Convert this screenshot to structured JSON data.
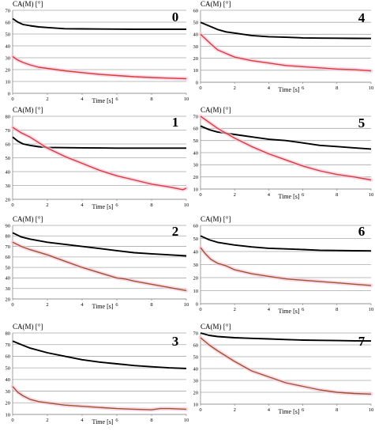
{
  "chart_data": [
    {
      "panel_label": "0",
      "type": "line",
      "ylabel": "CA(M) [°]",
      "xlabel": "Time [s]",
      "ylim": [
        0,
        70
      ],
      "yticks": [
        0,
        10,
        20,
        30,
        40,
        50,
        60,
        70
      ],
      "xlim": [
        0,
        10
      ],
      "xticks": [
        0,
        2,
        4,
        6,
        8,
        10
      ],
      "grid": "horizontal",
      "series": [
        {
          "color": "#000000",
          "x": [
            0,
            0.3,
            0.6,
            1,
            1.5,
            2,
            3,
            4,
            5,
            6,
            7,
            8,
            9,
            10
          ],
          "y": [
            63,
            60,
            58,
            57,
            56,
            55.5,
            54.5,
            54.3,
            54.2,
            54.1,
            54.0,
            54.0,
            54.0,
            54.0
          ]
        },
        {
          "color": "#d93a3a",
          "x": [
            0,
            0.3,
            0.6,
            1,
            1.5,
            2,
            3,
            4,
            5,
            6,
            7,
            8,
            9,
            10
          ],
          "y": [
            31,
            28,
            26,
            24,
            22,
            21,
            19,
            17.5,
            16,
            15,
            14,
            13.3,
            12.8,
            12.3
          ]
        }
      ]
    },
    {
      "panel_label": "4",
      "type": "line",
      "ylabel": "CA(M) [°]",
      "xlabel": "Time [s]",
      "ylim": [
        0,
        60
      ],
      "yticks": [
        0,
        10,
        20,
        30,
        40,
        50,
        60
      ],
      "xlim": [
        0,
        10
      ],
      "xticks": [
        0,
        2,
        4,
        6,
        8,
        10
      ],
      "grid": "horizontal",
      "series": [
        {
          "color": "#000000",
          "x": [
            0,
            0.5,
            1,
            1.5,
            2,
            3,
            4,
            5,
            6,
            7,
            8,
            9,
            10
          ],
          "y": [
            50,
            47,
            44,
            42,
            41,
            39,
            38,
            37.5,
            37,
            36.8,
            36.7,
            36.6,
            36.5
          ]
        },
        {
          "color": "#d93a3a",
          "x": [
            0,
            0.3,
            0.6,
            1,
            1.5,
            2,
            3,
            4,
            5,
            6,
            7,
            8,
            9,
            10
          ],
          "y": [
            40,
            36,
            32,
            27,
            24,
            21,
            18,
            16,
            14,
            13,
            12,
            11,
            10.5,
            9.5
          ]
        }
      ]
    },
    {
      "panel_label": "1",
      "type": "line",
      "ylabel": "CA(M) [°]",
      "xlabel": "Time [s]",
      "ylim": [
        20,
        80
      ],
      "yticks": [
        20,
        30,
        40,
        50,
        60,
        70,
        80
      ],
      "xlim": [
        0,
        10
      ],
      "xticks": [
        0,
        2,
        4,
        6,
        8,
        10
      ],
      "grid": "horizontal",
      "series": [
        {
          "color": "#000000",
          "x": [
            0,
            0.3,
            0.6,
            1,
            1.5,
            2,
            3,
            4,
            5,
            6,
            7,
            8,
            9,
            10
          ],
          "y": [
            65,
            62,
            60,
            59,
            58,
            57.5,
            57.3,
            57.2,
            57.1,
            57.0,
            57.0,
            57.0,
            57.0,
            57.0
          ]
        },
        {
          "color": "#d93a3a",
          "x": [
            0,
            0.5,
            1,
            2,
            3,
            4,
            5,
            6,
            7,
            8,
            9,
            9.8,
            10
          ],
          "y": [
            72,
            68,
            65,
            57,
            51,
            46,
            41,
            37,
            34,
            31,
            29,
            27,
            28
          ]
        }
      ]
    },
    {
      "panel_label": "5",
      "type": "line",
      "ylabel": "CA(M) [°]",
      "xlabel": "Time [s]",
      "ylim": [
        10,
        70
      ],
      "yticks": [
        10,
        20,
        30,
        40,
        50,
        60,
        70
      ],
      "xlim": [
        0,
        10
      ],
      "xticks": [
        0,
        2,
        4,
        6,
        8,
        10
      ],
      "grid": "horizontal",
      "series": [
        {
          "color": "#000000",
          "x": [
            0,
            0.5,
            1,
            2,
            3,
            4,
            5,
            6,
            7,
            8,
            9,
            10
          ],
          "y": [
            62,
            59,
            57,
            55,
            53,
            51,
            50,
            48,
            46,
            45,
            44,
            43
          ]
        },
        {
          "color": "#d93a3a",
          "x": [
            0,
            0.5,
            1,
            2,
            3,
            4,
            5,
            6,
            7,
            8,
            9,
            10
          ],
          "y": [
            70,
            65,
            60,
            52,
            45,
            39,
            34,
            29,
            25,
            22,
            20,
            17.5
          ]
        }
      ]
    },
    {
      "panel_label": "2",
      "type": "line",
      "ylabel": "CA(M) [°]",
      "xlabel": "Time [s]",
      "ylim": [
        20,
        90
      ],
      "yticks": [
        20,
        30,
        40,
        50,
        60,
        70,
        80,
        90
      ],
      "xlim": [
        0,
        10
      ],
      "xticks": [
        0,
        2,
        4,
        6,
        8,
        10
      ],
      "grid": "horizontal",
      "series": [
        {
          "color": "#000000",
          "x": [
            0,
            0.5,
            1,
            2,
            3,
            4,
            5,
            6,
            7,
            8,
            9,
            10
          ],
          "y": [
            83,
            79,
            77,
            74,
            72,
            70,
            68,
            66,
            64,
            63,
            62,
            61
          ]
        },
        {
          "color": "#a0522d",
          "x": [
            0,
            0.5,
            1,
            2,
            3,
            4,
            5,
            6,
            6.5,
            7,
            8,
            9,
            10
          ],
          "y": [
            74,
            70,
            67,
            62,
            56,
            50,
            45,
            40,
            39,
            37,
            34,
            31,
            28
          ]
        }
      ]
    },
    {
      "panel_label": "6",
      "type": "line",
      "ylabel": "CA(M) [°]",
      "xlabel": "Time [s]",
      "ylim": [
        0,
        60
      ],
      "yticks": [
        0,
        10,
        20,
        30,
        40,
        50,
        60
      ],
      "xlim": [
        0,
        10
      ],
      "xticks": [
        0,
        2,
        4,
        6,
        8,
        10
      ],
      "grid": "horizontal",
      "series": [
        {
          "color": "#000000",
          "x": [
            0,
            0.5,
            1,
            2,
            3,
            4,
            5,
            6,
            7,
            8,
            9,
            10
          ],
          "y": [
            52,
            49,
            47,
            45,
            43.5,
            42.5,
            42,
            41.5,
            41,
            40.8,
            40.6,
            40.5
          ]
        },
        {
          "color": "#a0522d",
          "x": [
            0,
            0.3,
            0.6,
            1,
            1.5,
            2,
            3,
            4,
            5,
            6,
            7,
            8,
            9,
            10
          ],
          "y": [
            43,
            38,
            34,
            31,
            29,
            26,
            23,
            21,
            19,
            18,
            17,
            16,
            15,
            14
          ]
        }
      ]
    },
    {
      "panel_label": "3",
      "type": "line",
      "ylabel": "CA(M) [°]",
      "xlabel": "Time [s]",
      "ylim": [
        10,
        80
      ],
      "yticks": [
        10,
        20,
        30,
        40,
        50,
        60,
        70,
        80
      ],
      "xlim": [
        0,
        10
      ],
      "xticks": [
        0,
        2,
        4,
        6,
        8,
        10
      ],
      "grid": "horizontal",
      "series": [
        {
          "color": "#000000",
          "x": [
            0,
            0.5,
            1,
            2,
            3,
            4,
            5,
            6,
            7,
            8,
            9,
            10
          ],
          "y": [
            73,
            70,
            67,
            63,
            60,
            57,
            55,
            53.5,
            52,
            51,
            50,
            49.5
          ]
        },
        {
          "color": "#a0522d",
          "x": [
            0,
            0.3,
            0.6,
            1,
            1.5,
            2,
            3,
            4,
            5,
            6,
            7,
            8,
            8.5,
            9,
            10
          ],
          "y": [
            34,
            29,
            26,
            23,
            21,
            20,
            18,
            17,
            16,
            15,
            14.5,
            14,
            15,
            15,
            14.5
          ]
        }
      ]
    },
    {
      "panel_label": "7",
      "type": "line",
      "ylabel": "CA(M) [°]",
      "xlabel": "Time [s]",
      "ylim": [
        10,
        70
      ],
      "yticks": [
        10,
        20,
        30,
        40,
        50,
        60,
        70
      ],
      "xlim": [
        0,
        10
      ],
      "xticks": [
        0,
        2,
        4,
        6,
        8,
        10
      ],
      "grid": "horizontal",
      "series": [
        {
          "color": "#000000",
          "x": [
            0,
            0.5,
            1,
            2,
            3,
            4,
            5,
            6,
            7,
            8,
            9,
            10
          ],
          "y": [
            70,
            68,
            67,
            66,
            65.5,
            65,
            64.5,
            64,
            63.8,
            63.6,
            63.4,
            63.3
          ]
        },
        {
          "color": "#a0522d",
          "x": [
            0,
            0.5,
            1,
            2,
            3,
            4,
            5,
            6,
            7,
            8,
            9,
            10
          ],
          "y": [
            66,
            60,
            55,
            46,
            38,
            33,
            28,
            25,
            22,
            20,
            19,
            18.5
          ]
        }
      ]
    }
  ]
}
